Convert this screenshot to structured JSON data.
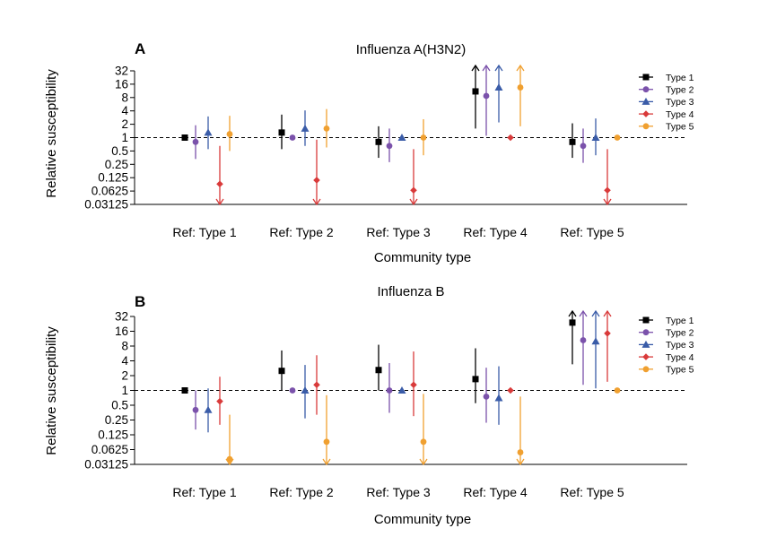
{
  "chart_data": [
    {
      "type": "scatter",
      "panel_letter": "A",
      "title": "Influenza A(H3N2)",
      "xlabel": "Community type",
      "ylabel": "Relative susceptibility",
      "yscale": "log2",
      "ylim": [
        0.03125,
        32
      ],
      "yticks": [
        "32",
        "16",
        "8",
        "4",
        "2",
        "1",
        "0.5",
        "0.25",
        "0.125",
        "0.0625",
        "0.03125"
      ],
      "reference_line": 1,
      "legend_placement": "top-right",
      "categories": [
        "Ref: Type 1",
        "Ref: Type 2",
        "Ref: Type 3",
        "Ref: Type 4",
        "Ref: Type 5"
      ],
      "series": [
        {
          "name": "Type 1",
          "color": "#000000",
          "marker": "square",
          "points": [
            {
              "est": 1,
              "lo": null,
              "hi": null
            },
            {
              "est": 1.3,
              "lo": 0.55,
              "hi": 3.3
            },
            {
              "est": 0.8,
              "lo": 0.35,
              "hi": 1.8
            },
            {
              "est": 11,
              "lo": 1.6,
              "hi": 40,
              "hi_arrow": true
            },
            {
              "est": 0.8,
              "lo": 0.35,
              "hi": 2.1
            }
          ]
        },
        {
          "name": "Type 2",
          "color": "#7b52ab",
          "marker": "circle",
          "points": [
            {
              "est": 0.8,
              "lo": 0.33,
              "hi": 1.9
            },
            {
              "est": 1,
              "lo": null,
              "hi": null
            },
            {
              "est": 0.65,
              "lo": 0.28,
              "hi": 1.6
            },
            {
              "est": 8.7,
              "lo": 1.1,
              "hi": 40,
              "hi_arrow": true
            },
            {
              "est": 0.65,
              "lo": 0.27,
              "hi": 1.6
            }
          ]
        },
        {
          "name": "Type 3",
          "color": "#3a5ca8",
          "marker": "triangle",
          "points": [
            {
              "est": 1.3,
              "lo": 0.55,
              "hi": 3.0
            },
            {
              "est": 1.6,
              "lo": 0.65,
              "hi": 4.1
            },
            {
              "est": 1,
              "lo": null,
              "hi": null
            },
            {
              "est": 13.5,
              "lo": 2.2,
              "hi": 40,
              "hi_arrow": true
            },
            {
              "est": 1,
              "lo": 0.4,
              "hi": 2.7
            }
          ]
        },
        {
          "name": "Type 4",
          "color": "#d93a3a",
          "marker": "diamond",
          "points": [
            {
              "est": 0.09,
              "lo": 0.03125,
              "hi": 0.65,
              "lo_arrow": true
            },
            {
              "est": 0.11,
              "lo": 0.03125,
              "hi": 0.9,
              "lo_arrow": true
            },
            {
              "est": 0.065,
              "lo": 0.03125,
              "hi": 0.55,
              "lo_arrow": true
            },
            {
              "est": 1,
              "lo": null,
              "hi": null
            },
            {
              "est": 0.065,
              "lo": 0.03125,
              "hi": 0.55,
              "lo_arrow": true
            }
          ]
        },
        {
          "name": "Type 5",
          "color": "#f0a030",
          "marker": "circle",
          "points": [
            {
              "est": 1.2,
              "lo": 0.5,
              "hi": 3.1
            },
            {
              "est": 1.6,
              "lo": 0.6,
              "hi": 4.4
            },
            {
              "est": 1,
              "lo": 0.4,
              "hi": 2.6
            },
            {
              "est": 13.5,
              "lo": 1.8,
              "hi": 40,
              "hi_arrow": true
            },
            {
              "est": 1,
              "lo": null,
              "hi": null
            }
          ]
        }
      ]
    },
    {
      "type": "scatter",
      "panel_letter": "B",
      "title": "Influenza B",
      "xlabel": "Community type",
      "ylabel": "Relative susceptibility",
      "yscale": "log2",
      "ylim": [
        0.03125,
        32
      ],
      "yticks": [
        "32",
        "16",
        "8",
        "4",
        "2",
        "1",
        "0.5",
        "0.25",
        "0.125",
        "0.0625",
        "0.03125"
      ],
      "reference_line": 1,
      "legend_placement": "top-right",
      "categories": [
        "Ref: Type 1",
        "Ref: Type 2",
        "Ref: Type 3",
        "Ref: Type 4",
        "Ref: Type 5"
      ],
      "series": [
        {
          "name": "Type 1",
          "color": "#000000",
          "marker": "square",
          "points": [
            {
              "est": 1,
              "lo": null,
              "hi": null
            },
            {
              "est": 2.5,
              "lo": 1,
              "hi": 6.5
            },
            {
              "est": 2.6,
              "lo": 1,
              "hi": 8.5
            },
            {
              "est": 1.7,
              "lo": 0.55,
              "hi": 7.2
            },
            {
              "est": 24,
              "lo": 3.4,
              "hi": 40,
              "hi_arrow": true
            }
          ]
        },
        {
          "name": "Type 2",
          "color": "#7b52ab",
          "marker": "circle",
          "points": [
            {
              "est": 0.4,
              "lo": 0.16,
              "hi": 1
            },
            {
              "est": 1,
              "lo": null,
              "hi": null
            },
            {
              "est": 1,
              "lo": 0.35,
              "hi": 3.6
            },
            {
              "est": 0.75,
              "lo": 0.22,
              "hi": 2.9
            },
            {
              "est": 10.5,
              "lo": 1.3,
              "hi": 40,
              "hi_arrow": true
            }
          ]
        },
        {
          "name": "Type 3",
          "color": "#3a5ca8",
          "marker": "triangle",
          "points": [
            {
              "est": 0.4,
              "lo": 0.14,
              "hi": 1.1
            },
            {
              "est": 1,
              "lo": 0.27,
              "hi": 3.3
            },
            {
              "est": 1,
              "lo": null,
              "hi": null
            },
            {
              "est": 0.7,
              "lo": 0.2,
              "hi": 3.1
            },
            {
              "est": 10,
              "lo": 1.1,
              "hi": 40,
              "hi_arrow": true
            }
          ]
        },
        {
          "name": "Type 4",
          "color": "#d93a3a",
          "marker": "diamond",
          "points": [
            {
              "est": 0.6,
              "lo": 0.2,
              "hi": 1.9
            },
            {
              "est": 1.3,
              "lo": 0.32,
              "hi": 5.2
            },
            {
              "est": 1.3,
              "lo": 0.3,
              "hi": 6.2
            },
            {
              "est": 1,
              "lo": null,
              "hi": null
            },
            {
              "est": 14.5,
              "lo": 1.5,
              "hi": 40,
              "hi_arrow": true
            }
          ]
        },
        {
          "name": "Type 5",
          "color": "#f0a030",
          "marker": "circle",
          "points": [
            {
              "est": 0.04,
              "lo": 0.03125,
              "hi": 0.32,
              "lo_arrow": true
            },
            {
              "est": 0.09,
              "lo": 0.03125,
              "hi": 0.8,
              "lo_arrow": true
            },
            {
              "est": 0.09,
              "lo": 0.03125,
              "hi": 0.85,
              "lo_arrow": true
            },
            {
              "est": 0.055,
              "lo": 0.03125,
              "hi": 0.75,
              "lo_arrow": true
            },
            {
              "est": 1,
              "lo": null,
              "hi": null
            }
          ]
        }
      ]
    }
  ]
}
